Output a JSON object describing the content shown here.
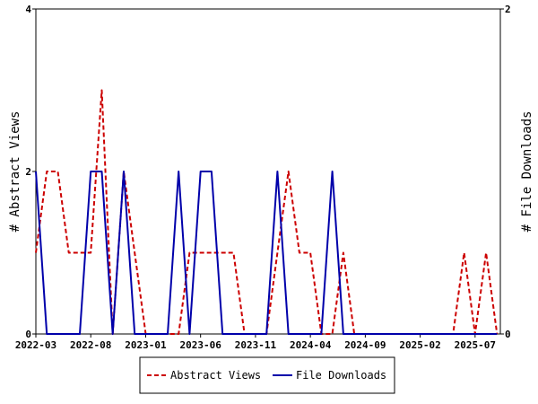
{
  "chart_data": {
    "type": "line",
    "x_tick_labels": [
      "2022-03",
      "2022-08",
      "2023-01",
      "2023-06",
      "2023-11",
      "2024-04",
      "2024-09",
      "2025-02",
      "2025-07"
    ],
    "y_left": {
      "label": "# Abstract Views",
      "ylim": [
        0,
        4
      ],
      "ticks": [
        "0",
        "2",
        "4"
      ]
    },
    "y_right": {
      "label": "# File Downloads",
      "ylim": [
        0,
        2
      ],
      "ticks": [
        "0",
        "2"
      ]
    },
    "legend_position": "bottom",
    "grid": false,
    "series": [
      {
        "name": "Abstract Views",
        "axis": "left",
        "color": "#cc0000",
        "dash": "dashed",
        "x": [
          "2022-03",
          "2022-04",
          "2022-05",
          "2022-06",
          "2022-07",
          "2022-08",
          "2022-09",
          "2022-10",
          "2022-11",
          "2022-12",
          "2023-01",
          "2023-02",
          "2023-03",
          "2023-04",
          "2023-05",
          "2023-06",
          "2023-07",
          "2023-08",
          "2023-09",
          "2023-10",
          "2023-11",
          "2023-12",
          "2024-01",
          "2024-02",
          "2024-03",
          "2024-04",
          "2024-05",
          "2024-06",
          "2024-07",
          "2024-08",
          "2024-09",
          "2024-10",
          "2024-11",
          "2024-12",
          "2025-01",
          "2025-02",
          "2025-03",
          "2025-04",
          "2025-05",
          "2025-06",
          "2025-07",
          "2025-08",
          "2025-09"
        ],
        "values": [
          1,
          2,
          2,
          1,
          1,
          1,
          3,
          0,
          2,
          1,
          0,
          0,
          0,
          0,
          1,
          1,
          1,
          1,
          1,
          0,
          0,
          0,
          1,
          2,
          1,
          1,
          0,
          0,
          1,
          0,
          0,
          0,
          0,
          0,
          0,
          0,
          0,
          0,
          0,
          1,
          0,
          1,
          0
        ]
      },
      {
        "name": "File Downloads",
        "axis": "right",
        "color": "#0000aa",
        "dash": "solid",
        "x": [
          "2022-03",
          "2022-04",
          "2022-05",
          "2022-06",
          "2022-07",
          "2022-08",
          "2022-09",
          "2022-10",
          "2022-11",
          "2022-12",
          "2023-01",
          "2023-02",
          "2023-03",
          "2023-04",
          "2023-05",
          "2023-06",
          "2023-07",
          "2023-08",
          "2023-09",
          "2023-10",
          "2023-11",
          "2023-12",
          "2024-01",
          "2024-02",
          "2024-03",
          "2024-04",
          "2024-05",
          "2024-06",
          "2024-07",
          "2024-08",
          "2024-09",
          "2024-10",
          "2024-11",
          "2024-12",
          "2025-01",
          "2025-02",
          "2025-03",
          "2025-04",
          "2025-05",
          "2025-06",
          "2025-07",
          "2025-08",
          "2025-09"
        ],
        "values": [
          1,
          0,
          0,
          0,
          0,
          1,
          1,
          0,
          1,
          0,
          0,
          0,
          0,
          1,
          0,
          1,
          1,
          0,
          0,
          0,
          0,
          0,
          1,
          0,
          0,
          0,
          0,
          1,
          0,
          0,
          0,
          0,
          0,
          0,
          0,
          0,
          0,
          0,
          0,
          0,
          0,
          0,
          0
        ]
      }
    ]
  }
}
